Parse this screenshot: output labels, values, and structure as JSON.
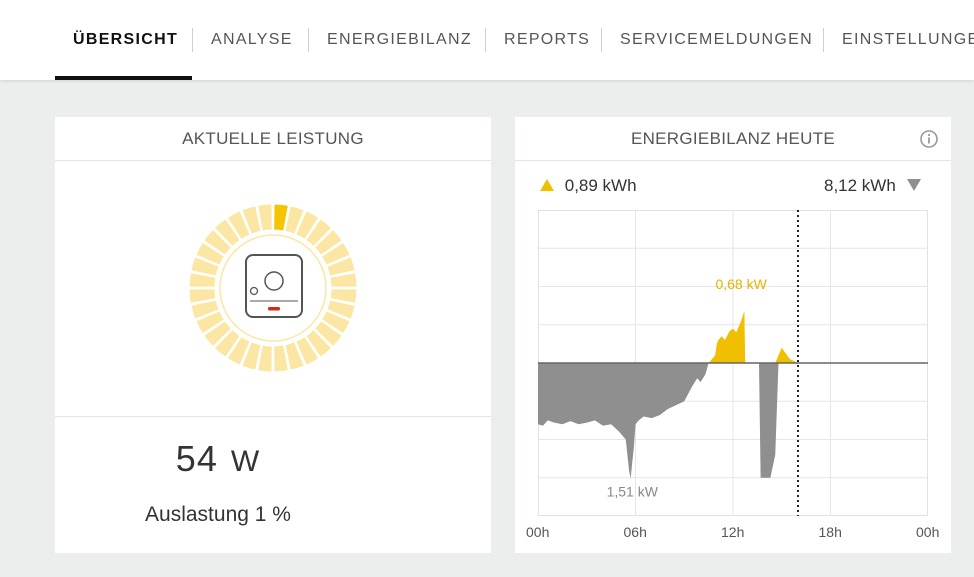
{
  "nav": {
    "tabs": [
      {
        "label": "ÜBERSICHT",
        "active": true
      },
      {
        "label": "ANALYSE"
      },
      {
        "label": "ENERGIEBILANZ"
      },
      {
        "label": "REPORTS"
      },
      {
        "label": "SERVICEMELDUNGEN"
      },
      {
        "label": "EINSTELLUNGE"
      }
    ]
  },
  "current_power": {
    "title": "AKTUELLE LEISTUNG",
    "value": "54",
    "unit": "W",
    "utilization_label": "Auslastung",
    "utilization_value": "1 %",
    "gauge_fraction": 0.01,
    "gauge_color": "#f5c400",
    "gauge_track_color": "#fbe7a3"
  },
  "energy_balance": {
    "title": "ENERGIEBILANZ HEUTE",
    "info_icon": "info-icon",
    "feed_in_label": "0,89 kWh",
    "consumption_label": "8,12 kWh",
    "colors": {
      "positive": "#f0c000",
      "negative": "#8f8f8f"
    }
  },
  "chart_data": {
    "type": "area",
    "x_unit": "hours",
    "xlim": [
      0,
      24
    ],
    "ylim": [
      -2,
      2
    ],
    "ylabel": "",
    "xlabel": "",
    "x_tick_labels": [
      "00h",
      "06h",
      "12h",
      "18h",
      "00h"
    ],
    "current_time": 16,
    "annotations": [
      {
        "label": "0,68 kW",
        "x": 12.5,
        "y": 0.68
      },
      {
        "label": "1,51 kW",
        "x": 5.8,
        "y": -1.51
      }
    ],
    "x": [
      0,
      0.3,
      0.6,
      1.0,
      1.5,
      2.0,
      2.5,
      3.0,
      3.5,
      4.0,
      4.5,
      5.0,
      5.4,
      5.6,
      5.7,
      5.8,
      5.9,
      6.0,
      6.2,
      6.5,
      7.0,
      7.5,
      8.0,
      8.5,
      9.0,
      9.5,
      9.8,
      10.0,
      10.3,
      10.5,
      10.9,
      11.0,
      11.1,
      11.3,
      11.5,
      11.8,
      12.0,
      12.2,
      12.5,
      12.7,
      12.75,
      13.0,
      13.6,
      13.7,
      14.0,
      14.3,
      14.6,
      14.8,
      15.0,
      15.5,
      16.0
    ],
    "values": [
      -0.8,
      -0.82,
      -0.75,
      -0.78,
      -0.8,
      -0.76,
      -0.8,
      -0.78,
      -0.75,
      -0.82,
      -0.8,
      -0.9,
      -1.0,
      -1.4,
      -1.51,
      -1.3,
      -1.1,
      -0.8,
      -0.75,
      -0.7,
      -0.72,
      -0.68,
      -0.6,
      -0.55,
      -0.5,
      -0.3,
      -0.2,
      -0.25,
      -0.15,
      0.0,
      0.1,
      0.25,
      0.3,
      0.35,
      0.3,
      0.42,
      0.45,
      0.4,
      0.55,
      0.68,
      0.0,
      0.0,
      0.0,
      -1.5,
      -1.5,
      -1.5,
      -1.2,
      0.1,
      0.2,
      0.05,
      0.0
    ]
  }
}
